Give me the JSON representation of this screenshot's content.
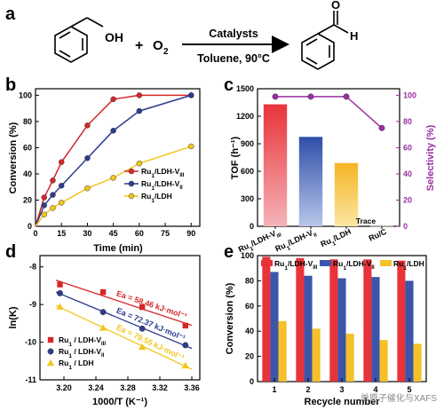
{
  "panel_labels": [
    "a",
    "b",
    "c",
    "d",
    "e"
  ],
  "reaction": {
    "reactant_1": "OH",
    "plus": "+",
    "reactant_2": "O",
    "reactant_2_sub": "2",
    "catalyst": "Catalysts",
    "conditions": "Toluene, 90°C",
    "product_label_o": "O",
    "product_label_h": "H"
  },
  "watermark": "单原子催化与XAFS",
  "chart_data": [
    {
      "panel": "b",
      "type": "line",
      "xlabel": "Time (min)",
      "ylabel": "Conversion (%)",
      "xlim": [
        0,
        95
      ],
      "ylim": [
        0,
        105
      ],
      "xticks": [
        0,
        15,
        30,
        45,
        60,
        75,
        90
      ],
      "yticks": [
        0,
        20,
        40,
        60,
        80,
        100
      ],
      "legend_position": "center-right",
      "series": [
        {
          "name": "Ru1/LDH-VIII",
          "color": "#d62728",
          "marker": "circle",
          "x": [
            0,
            5,
            10,
            15,
            30,
            45,
            60,
            90
          ],
          "y": [
            0,
            22,
            35,
            49,
            77,
            97,
            100,
            100
          ]
        },
        {
          "name": "Ru1/LDH-VII",
          "color": "#2e3c8f",
          "marker": "circle",
          "x": [
            0,
            5,
            10,
            15,
            30,
            45,
            60,
            90
          ],
          "y": [
            0,
            16,
            24,
            31,
            52,
            73,
            88,
            100
          ]
        },
        {
          "name": "Ru1/LDH",
          "color": "#f2c61f",
          "marker": "circle",
          "x": [
            0,
            5,
            10,
            15,
            30,
            45,
            60,
            90
          ],
          "y": [
            0,
            9,
            14,
            18,
            29,
            37,
            48,
            61
          ]
        }
      ]
    },
    {
      "panel": "c",
      "type": "bar",
      "ylabel_left": "TOF (h⁻¹)",
      "ylabel_right": "Selectivity (%)",
      "ylim_left": [
        0,
        1500
      ],
      "ylim_right": [
        0,
        105
      ],
      "yticks_left": [
        0,
        300,
        600,
        900,
        1200,
        1500
      ],
      "yticks_right": [
        0,
        20,
        40,
        60,
        80,
        100
      ],
      "categories": [
        "Ru1/LDH-VIII",
        "Ru1/LDH-VII",
        "Ru1/LDH",
        "Ru/C"
      ],
      "tof": [
        1330,
        975,
        690,
        5
      ],
      "selectivity": [
        99,
        99,
        99,
        75
      ],
      "bar_colors": [
        "#e8333a",
        "#2f4fa8",
        "#f5b524",
        "#999999"
      ],
      "selectivity_color": "#9b2fa3",
      "annotation": "Trace"
    },
    {
      "panel": "d",
      "type": "scatter",
      "xlabel": "1000/T (K⁻¹)",
      "ylabel": "ln(K)",
      "xlim": [
        3.17,
        3.37
      ],
      "ylim": [
        -11,
        -7.7
      ],
      "xticks": [
        3.2,
        3.24,
        3.28,
        3.32,
        3.36
      ],
      "yticks": [
        -8,
        -9,
        -10,
        -11
      ],
      "legend_position": "bottom-left",
      "series": [
        {
          "name": "Ru1 / LDH-VIII",
          "color": "#d62728",
          "marker": "square",
          "x": [
            3.195,
            3.249,
            3.298,
            3.352
          ],
          "y": [
            -8.47,
            -8.67,
            -9.07,
            -9.56
          ],
          "annotation": "Ea = 58.46 kJ·mol⁻¹"
        },
        {
          "name": "Ru1 / LDH-VII",
          "color": "#2e3c8f",
          "marker": "circle",
          "x": [
            3.195,
            3.249,
            3.298,
            3.352
          ],
          "y": [
            -8.7,
            -9.2,
            -9.64,
            -10.08
          ],
          "annotation": "Ea = 72.37 kJ·mol⁻¹"
        },
        {
          "name": "Ru1 / LDH",
          "color": "#f2c61f",
          "marker": "triangle",
          "x": [
            3.195,
            3.249,
            3.298,
            3.352
          ],
          "y": [
            -9.06,
            -9.62,
            -10.13,
            -10.62
          ],
          "annotation": "Ea = 79.55 kJ·mol⁻¹"
        }
      ]
    },
    {
      "panel": "e",
      "type": "bar",
      "xlabel": "Recycle number",
      "ylabel": "Conversion (%)",
      "ylim": [
        0,
        100
      ],
      "yticks": [
        0,
        20,
        40,
        60,
        80,
        100
      ],
      "categories": [
        "1",
        "2",
        "3",
        "4",
        "5"
      ],
      "legend_position": "top",
      "series": [
        {
          "name": "Ru1/LDH-VIII",
          "color": "#e8333a",
          "values": [
            99,
            98,
            97,
            97,
            96
          ]
        },
        {
          "name": "Ru1/LDH-VII",
          "color": "#3b55a8",
          "values": [
            87,
            84,
            82,
            83,
            80
          ]
        },
        {
          "name": "Ru1/LDH",
          "color": "#f5c02a",
          "values": [
            48,
            42,
            38,
            33,
            30
          ]
        }
      ]
    }
  ]
}
